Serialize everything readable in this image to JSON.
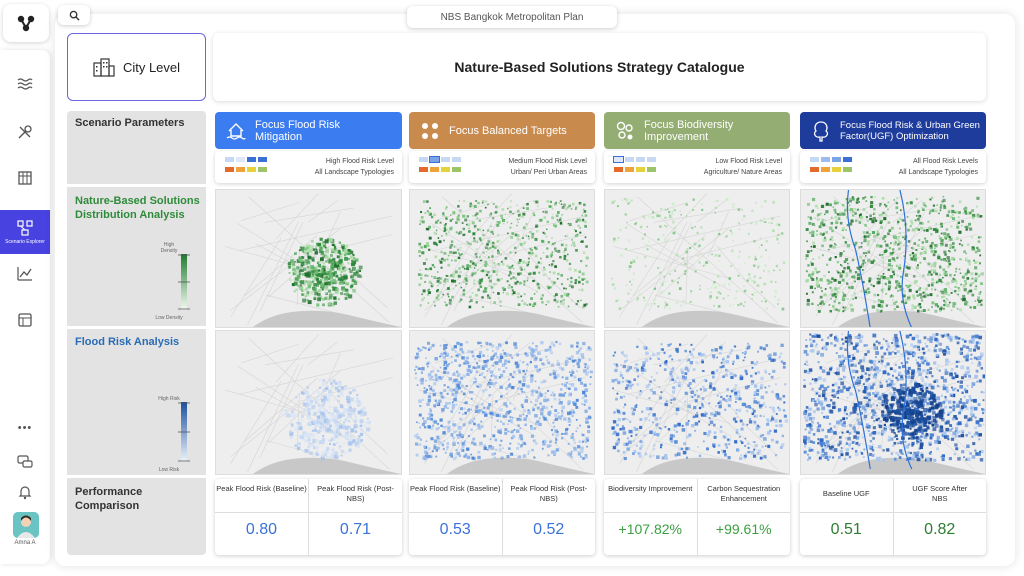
{
  "app": {
    "plan_title": "NBS Bangkok Metropolitan Plan"
  },
  "sidebar": {
    "items": [
      {
        "icon": "waves-icon"
      },
      {
        "icon": "tools-icon"
      },
      {
        "icon": "grid-icon"
      },
      {
        "icon": "scenario-icon",
        "label": "Scenario Explorer",
        "active": true
      },
      {
        "icon": "line-chart-icon"
      },
      {
        "icon": "table-icon"
      }
    ],
    "more": "•••",
    "user_name": "Amna A"
  },
  "header": {
    "city_level": "City Level",
    "catalogue_title": "Nature-Based Solutions Strategy Catalogue"
  },
  "rows": {
    "scenario_parameters": "Scenario Parameters",
    "nbs_distribution": "Nature-Based Solutions Distribution Analysis",
    "flood_risk": "Flood Risk Analysis",
    "performance": "Performance Comparison",
    "density_legend": {
      "high": "High Density",
      "low": "Low Density"
    },
    "risk_legend": {
      "high": "High Risk",
      "low": "Low Risk"
    }
  },
  "columns": [
    {
      "title": "Focus Flood Risk Mitigation",
      "color": "#3b7df0",
      "icon": "flood-house-icon",
      "risk_level": "High Flood Risk Level",
      "landscape": "All Landscape Typologies",
      "metrics": [
        {
          "label": "Peak Flood Risk (Baseline)",
          "value": "0.80",
          "color": "#3b72d9"
        },
        {
          "label": "Peak Flood Risk (Post-NBS)",
          "value": "0.71",
          "color": "#3b72d9"
        }
      ]
    },
    {
      "title": "Focus Balanced Targets",
      "color": "#c98a4e",
      "icon": "four-dots-icon",
      "risk_level": "Medium Flood Risk Level",
      "landscape": "Urban/ Peri Urban Areas",
      "metrics": [
        {
          "label": "Peak Flood Risk (Baseline)",
          "value": "0.53",
          "color": "#3b72d9"
        },
        {
          "label": "Peak Flood Risk (Post-NBS)",
          "value": "0.52",
          "color": "#3b72d9"
        }
      ]
    },
    {
      "title": "Focus Biodiversity Improvement",
      "color": "#93ad73",
      "icon": "biodiversity-icon",
      "risk_level": "Low Flood Risk Level",
      "landscape": "Agriculture/ Nature Areas",
      "metrics": [
        {
          "label": "Biodiversity Improvement",
          "value": "+107.82%",
          "color": "#3aa040"
        },
        {
          "label": "Carbon Sequestration Enhancement",
          "value": "+99.61%",
          "color": "#3aa040"
        }
      ]
    },
    {
      "title": "Focus Flood Risk & Urban Green Factor(UGF) Optimization",
      "color": "#1e3c9c",
      "icon": "tree-icon",
      "risk_level": "All Flood Risk Levels",
      "landscape": "All Landscape Typologies",
      "metrics": [
        {
          "label": "Baseline UGF",
          "value": "0.51",
          "color": "#2e7d32"
        },
        {
          "label": "UGF Score After NBS",
          "value": "0.82",
          "color": "#2e7d32"
        }
      ]
    }
  ],
  "legend_colors": {
    "blue_row": [
      "#c7d8f5",
      "#9fbbee",
      "#7aa3e8",
      "#3b6fd8"
    ],
    "heat_row": [
      "#e46a2c",
      "#f0a23a",
      "#e6d23a",
      "#9ec46a"
    ]
  }
}
